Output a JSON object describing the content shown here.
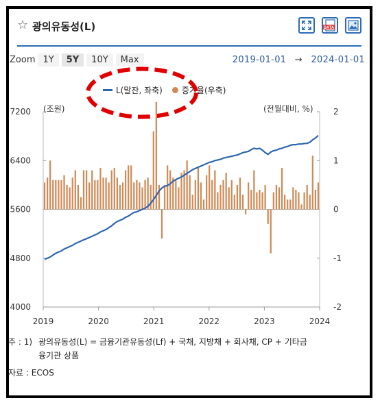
{
  "header": {
    "title": "광의유동성(L)",
    "star_icon": "star-outline-icon",
    "icons": [
      "expand-icon",
      "data-download-icon",
      "image-download-icon"
    ],
    "data_icon_label": "DATA"
  },
  "toolbar": {
    "zoom_label": "Zoom",
    "zoom_options": [
      "1Y",
      "5Y",
      "10Y",
      "Max"
    ],
    "zoom_selected": "5Y",
    "range_start": "2019-01-01",
    "range_arrow": "→",
    "range_end": "2024-01-01"
  },
  "legend": {
    "line_label": "L(말잔, 좌축)",
    "bar_label": "증가율(우축)"
  },
  "units": {
    "left": "(조원)",
    "right": "(전월대비, %)"
  },
  "colors": {
    "line": "#2c66b0",
    "bar": "#d08a56",
    "accent": "#2b6bb5",
    "highlight": "#e00000"
  },
  "chart_data": {
    "type": "bar+line",
    "title": "광의유동성(L)",
    "x_range": [
      "2019-01",
      "2024-01"
    ],
    "x_ticks": [
      "2019",
      "2020",
      "2021",
      "2022",
      "2023",
      "2024"
    ],
    "y_left": {
      "label": "(조원)",
      "ticks": [
        4000,
        4800,
        5600,
        6400,
        7200
      ],
      "lim": [
        4000,
        7200
      ]
    },
    "y_right": {
      "label": "(전월대비, %)",
      "ticks": [
        -2,
        -1,
        0,
        1,
        2
      ],
      "lim": [
        -2,
        2
      ]
    },
    "series": [
      {
        "name": "L(말잔, 좌축)",
        "type": "line",
        "axis": "left",
        "values": [
          4780,
          4800,
          4820,
          4850,
          4880,
          4900,
          4920,
          4950,
          4970,
          4990,
          5010,
          5040,
          5060,
          5080,
          5100,
          5120,
          5140,
          5160,
          5180,
          5200,
          5230,
          5250,
          5270,
          5300,
          5330,
          5370,
          5400,
          5420,
          5440,
          5470,
          5490,
          5520,
          5550,
          5560,
          5580,
          5600,
          5620,
          5650,
          5700,
          5760,
          5830,
          5900,
          5950,
          5980,
          5990,
          6020,
          6060,
          6090,
          6110,
          6130,
          6160,
          6190,
          6220,
          6250,
          6270,
          6290,
          6310,
          6330,
          6350,
          6370,
          6380,
          6400,
          6410,
          6420,
          6440,
          6450,
          6460,
          6470,
          6480,
          6490,
          6510,
          6530,
          6540,
          6550,
          6580,
          6600,
          6590,
          6600,
          6570,
          6530,
          6500,
          6540,
          6560,
          6570,
          6590,
          6600,
          6620,
          6630,
          6650,
          6660,
          6660,
          6670,
          6670,
          6680,
          6680,
          6700,
          6740,
          6770,
          6810
        ]
      },
      {
        "name": "증가율(우축)",
        "type": "bar",
        "axis": "right",
        "values": [
          0.55,
          0.65,
          1.0,
          0.6,
          0.6,
          0.6,
          0.6,
          0.7,
          0.5,
          0.45,
          0.65,
          0.8,
          0.5,
          0.25,
          0.8,
          0.8,
          0.55,
          0.8,
          0.6,
          0.6,
          0.85,
          0.65,
          0.65,
          0.55,
          0.8,
          0.85,
          0.65,
          0.5,
          0.55,
          0.8,
          0.9,
          0.9,
          0.55,
          0.6,
          0.55,
          0.45,
          0.6,
          0.65,
          0.5,
          1.6,
          2.2,
          0.5,
          -0.6,
          0.5,
          0.9,
          0.8,
          0.65,
          0.6,
          0.45,
          0.75,
          0.8,
          1.0,
          0.7,
          0.3,
          0.6,
          0.85,
          0.55,
          0.2,
          0.7,
          0.9,
          0.6,
          0.8,
          0.35,
          0.5,
          0.6,
          0.75,
          0.45,
          0.6,
          0.3,
          0.5,
          0.65,
          0.3,
          -0.1,
          0.55,
          0.4,
          0.8,
          0.35,
          0.4,
          0.35,
          0.5,
          -0.3,
          -0.9,
          0.35,
          0.5,
          0.45,
          0.85,
          0.3,
          0.2,
          0.2,
          0.45,
          0.4,
          0.35,
          0.1,
          0.35,
          0.5,
          0.3,
          1.1,
          0.4,
          0.55
        ]
      }
    ]
  },
  "footnote": {
    "prefix": "주 : 1)",
    "line1": "광의유동성(L) = 금융기관유동성(Lf) + 국채, 지방채 + 회사채, CP + 기타금",
    "line2": "융기관 상품",
    "source_label": "자료 :",
    "source": "ECOS"
  }
}
